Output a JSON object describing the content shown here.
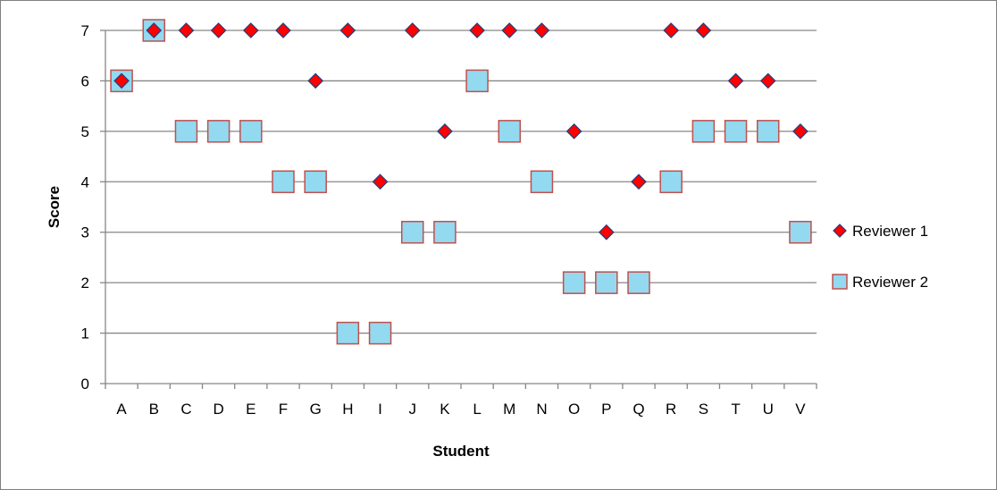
{
  "chart_data": {
    "type": "scatter",
    "title": "",
    "xlabel": "Student",
    "ylabel": "Score",
    "categories": [
      "A",
      "B",
      "C",
      "D",
      "E",
      "F",
      "G",
      "H",
      "I",
      "J",
      "K",
      "L",
      "M",
      "N",
      "O",
      "P",
      "Q",
      "R",
      "S",
      "T",
      "U",
      "V"
    ],
    "ylim": [
      0,
      7
    ],
    "yticks": [
      0,
      1,
      2,
      3,
      4,
      5,
      6,
      7
    ],
    "grid": true,
    "legend_position": "right",
    "series": [
      {
        "name": "Reviewer 1",
        "marker": "diamond",
        "color": "#ff0000",
        "edge_color": "#1f3f7f",
        "values": [
          6,
          7,
          7,
          7,
          7,
          7,
          6,
          7,
          4,
          7,
          5,
          7,
          7,
          7,
          5,
          3,
          4,
          7,
          7,
          6,
          6,
          5
        ]
      },
      {
        "name": "Reviewer 2",
        "marker": "square",
        "color": "#93d9f0",
        "edge_color": "#c0504d",
        "values": [
          6,
          7,
          5,
          5,
          5,
          4,
          4,
          1,
          1,
          3,
          3,
          6,
          5,
          4,
          2,
          2,
          2,
          4,
          5,
          5,
          5,
          3
        ]
      }
    ]
  }
}
